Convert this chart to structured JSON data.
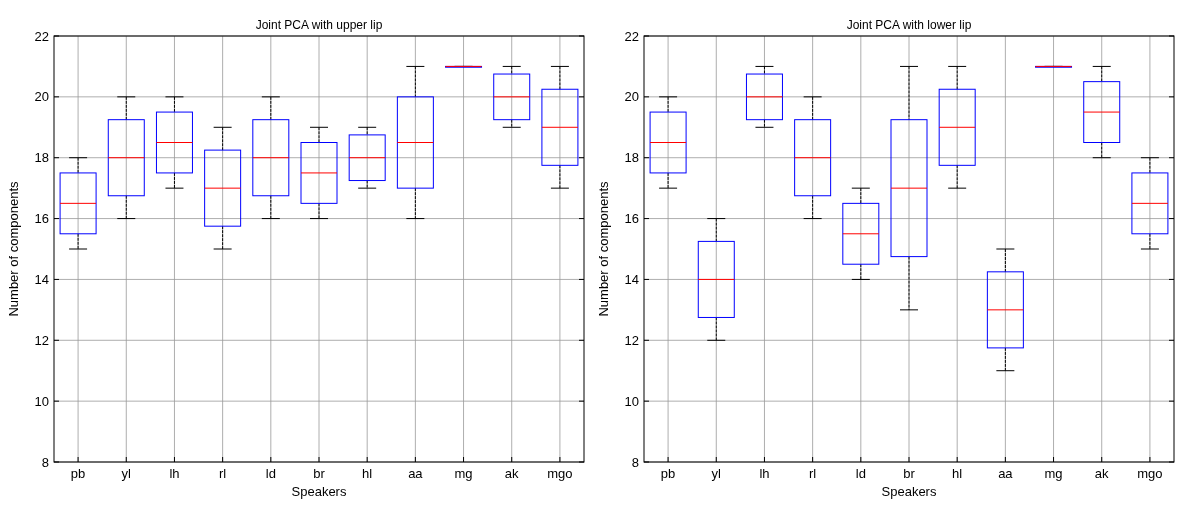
{
  "chart_data": [
    {
      "type": "box",
      "title": "Joint PCA with upper lip",
      "xlabel": "Speakers",
      "ylabel": "Number of components",
      "categories": [
        "pb",
        "yl",
        "lh",
        "rl",
        "ld",
        "br",
        "hl",
        "aa",
        "mg",
        "ak",
        "mgo"
      ],
      "ylim": [
        8,
        22
      ],
      "yticks": [
        8,
        10,
        12,
        14,
        16,
        18,
        20,
        22
      ],
      "grid": true,
      "series": [
        {
          "color": "#0000ff",
          "boxes": [
            {
              "low": 15,
              "q1": 15.5,
              "median": 16.5,
              "q3": 17.5,
              "high": 18
            },
            {
              "low": 16,
              "q1": 16.75,
              "median": 18,
              "q3": 19.25,
              "high": 20
            },
            {
              "low": 17,
              "q1": 17.5,
              "median": 18.5,
              "q3": 19.5,
              "high": 20
            },
            {
              "low": 15,
              "q1": 15.75,
              "median": 17,
              "q3": 18.25,
              "high": 19
            },
            {
              "low": 16,
              "q1": 16.75,
              "median": 18,
              "q3": 19.25,
              "high": 20
            },
            {
              "low": 16,
              "q1": 16.5,
              "median": 17.5,
              "q3": 18.5,
              "high": 19
            },
            {
              "low": 17,
              "q1": 17.25,
              "median": 18,
              "q3": 18.75,
              "high": 19
            },
            {
              "low": 16,
              "q1": 17,
              "median": 18.5,
              "q3": 20,
              "high": 21
            },
            {
              "low": 21,
              "q1": 21,
              "median": 21,
              "q3": 21,
              "high": 21
            },
            {
              "low": 19,
              "q1": 19.25,
              "median": 20,
              "q3": 20.75,
              "high": 21
            },
            {
              "low": 17,
              "q1": 17.75,
              "median": 19,
              "q3": 20.25,
              "high": 21
            }
          ]
        }
      ]
    },
    {
      "type": "box",
      "title": "Joint PCA with lower lip",
      "xlabel": "Speakers",
      "ylabel": "Number of components",
      "categories": [
        "pb",
        "yl",
        "lh",
        "rl",
        "ld",
        "br",
        "hl",
        "aa",
        "mg",
        "ak",
        "mgo"
      ],
      "ylim": [
        8,
        22
      ],
      "yticks": [
        8,
        10,
        12,
        14,
        16,
        18,
        20,
        22
      ],
      "grid": true,
      "series": [
        {
          "color": "#0000ff",
          "boxes": [
            {
              "low": 17,
              "q1": 17.5,
              "median": 18.5,
              "q3": 19.5,
              "high": 20
            },
            {
              "low": 12,
              "q1": 12.75,
              "median": 14,
              "q3": 15.25,
              "high": 16
            },
            {
              "low": 19,
              "q1": 19.25,
              "median": 20,
              "q3": 20.75,
              "high": 21
            },
            {
              "low": 16,
              "q1": 16.75,
              "median": 18,
              "q3": 19.25,
              "high": 20
            },
            {
              "low": 14,
              "q1": 14.5,
              "median": 15.5,
              "q3": 16.5,
              "high": 17
            },
            {
              "low": 13,
              "q1": 14.75,
              "median": 17,
              "q3": 19.25,
              "high": 21
            },
            {
              "low": 17,
              "q1": 17.75,
              "median": 19,
              "q3": 20.25,
              "high": 21
            },
            {
              "low": 11,
              "q1": 11.75,
              "median": 13,
              "q3": 14.25,
              "high": 15
            },
            {
              "low": 21,
              "q1": 21,
              "median": 21,
              "q3": 21,
              "high": 21
            },
            {
              "low": 18,
              "q1": 18.5,
              "median": 19.5,
              "q3": 20.5,
              "high": 21
            },
            {
              "low": 15,
              "q1": 15.5,
              "median": 16.5,
              "q3": 17.5,
              "high": 18
            }
          ]
        }
      ]
    }
  ]
}
